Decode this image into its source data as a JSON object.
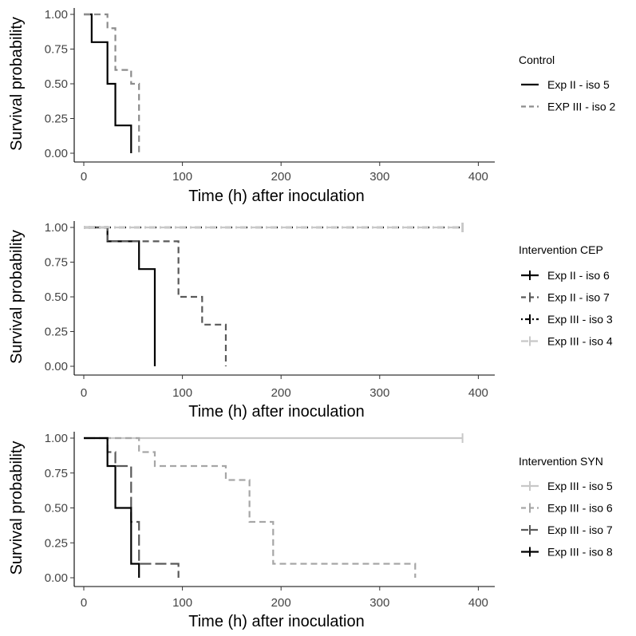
{
  "chart_data": [
    {
      "type": "line",
      "subtype": "kaplan-meier",
      "xlabel": "Time (h) after inoculation",
      "ylabel": "Survival probability",
      "xlim": [
        0,
        400
      ],
      "ylim": [
        0,
        1
      ],
      "xticks": [
        "0",
        "100",
        "200",
        "300",
        "400"
      ],
      "yticks": [
        "0.00",
        "0.25",
        "0.50",
        "0.75",
        "1.00"
      ],
      "legend_title": "Control",
      "series": [
        {
          "name": "Exp II - iso 5",
          "color": "#000000",
          "dash": "solid",
          "steps": [
            [
              0,
              1.0
            ],
            [
              8,
              0.8
            ],
            [
              24,
              0.5
            ],
            [
              32,
              0.2
            ],
            [
              48,
              0.0
            ]
          ],
          "censored": []
        },
        {
          "name": "EXP III - iso 2",
          "color": "#8c8c8c",
          "dash": "dashed",
          "steps": [
            [
              0,
              1.0
            ],
            [
              24,
              0.9
            ],
            [
              32,
              0.6
            ],
            [
              48,
              0.5
            ],
            [
              56,
              0.0
            ]
          ],
          "censored": []
        }
      ]
    },
    {
      "type": "line",
      "subtype": "kaplan-meier",
      "xlabel": "Time (h) after inoculation",
      "ylabel": "Survival probability",
      "xlim": [
        0,
        400
      ],
      "ylim": [
        0,
        1
      ],
      "xticks": [
        "0",
        "100",
        "200",
        "300",
        "400"
      ],
      "yticks": [
        "0.00",
        "0.25",
        "0.50",
        "0.75",
        "1.00"
      ],
      "legend_title": "Intervention CEP",
      "series": [
        {
          "name": "Exp II - iso 6",
          "color": "#000000",
          "dash": "solid",
          "steps": [
            [
              0,
              1.0
            ],
            [
              24,
              0.9
            ],
            [
              56,
              0.7
            ],
            [
              72,
              0.0
            ]
          ],
          "censored": []
        },
        {
          "name": "Exp II - iso 7",
          "color": "#595959",
          "dash": "dashed",
          "steps": [
            [
              0,
              1.0
            ],
            [
              24,
              0.9
            ],
            [
              96,
              0.5
            ],
            [
              120,
              0.3
            ],
            [
              144,
              0.0
            ]
          ],
          "censored": []
        },
        {
          "name": "Exp III - iso 3",
          "color": "#000000",
          "dash": "dotdash",
          "steps": [
            [
              0,
              1.0
            ],
            [
              384,
              1.0
            ]
          ],
          "censored": [
            384
          ]
        },
        {
          "name": "Exp III - iso 4",
          "color": "#c8c8c8",
          "dash": "longdash",
          "steps": [
            [
              0,
              1.0
            ],
            [
              384,
              1.0
            ]
          ],
          "censored": [
            384
          ]
        }
      ]
    },
    {
      "type": "line",
      "subtype": "kaplan-meier",
      "xlabel": "Time (h) after inoculation",
      "ylabel": "Survival probability",
      "xlim": [
        0,
        400
      ],
      "ylim": [
        0,
        1
      ],
      "xticks": [
        "0",
        "100",
        "200",
        "300",
        "400"
      ],
      "yticks": [
        "0.00",
        "0.25",
        "0.50",
        "0.75",
        "1.00"
      ],
      "legend_title": "Intervention SYN",
      "series": [
        {
          "name": "Exp III - iso 5",
          "color": "#c8c8c8",
          "dash": "solid",
          "steps": [
            [
              0,
              1.0
            ],
            [
              384,
              1.0
            ]
          ],
          "censored": [
            384
          ]
        },
        {
          "name": "Exp III - iso 6",
          "color": "#a6a6a6",
          "dash": "dashed",
          "steps": [
            [
              0,
              1.0
            ],
            [
              56,
              0.9
            ],
            [
              72,
              0.8
            ],
            [
              144,
              0.7
            ],
            [
              168,
              0.4
            ],
            [
              192,
              0.1
            ],
            [
              336,
              0.0
            ]
          ],
          "censored": []
        },
        {
          "name": "Exp III - iso 7",
          "color": "#595959",
          "dash": "longdash",
          "steps": [
            [
              0,
              1.0
            ],
            [
              24,
              0.9
            ],
            [
              32,
              0.8
            ],
            [
              48,
              0.4
            ],
            [
              56,
              0.1
            ],
            [
              96,
              0.0
            ]
          ],
          "censored": []
        },
        {
          "name": "Exp III - iso 8",
          "color": "#000000",
          "dash": "solid",
          "steps": [
            [
              0,
              1.0
            ],
            [
              24,
              0.8
            ],
            [
              32,
              0.5
            ],
            [
              48,
              0.1
            ],
            [
              56,
              0.0
            ]
          ],
          "censored": []
        }
      ]
    }
  ]
}
